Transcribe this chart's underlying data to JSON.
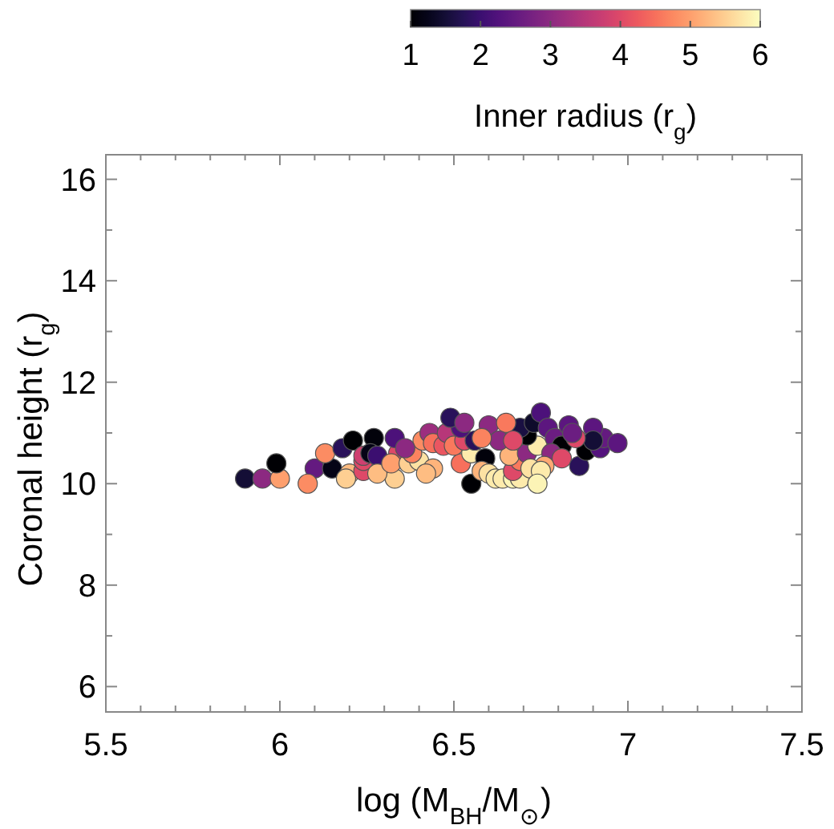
{
  "chart_data": {
    "type": "scatter",
    "xlabel": "log (M$_{BH}$/M$_{⊙}$)",
    "ylabel": "Coronal height (r$_{g}$)",
    "clabel": "Inner radius (r$_{g}$)",
    "xlim": [
      5.5,
      7.5
    ],
    "ylim": [
      5.5,
      16.5
    ],
    "xticks": [
      5.5,
      {
        "value": 5.6,
        "label": null
      },
      {
        "value": 5.7,
        "label": null
      },
      {
        "value": 5.8,
        "label": null
      },
      {
        "value": 5.9,
        "label": null
      },
      6,
      {
        "value": 6.1,
        "label": null
      },
      {
        "value": 6.2,
        "label": null
      },
      {
        "value": 6.3,
        "label": null
      },
      {
        "value": 6.4,
        "label": null
      },
      6.5,
      {
        "value": 6.6,
        "label": null
      },
      {
        "value": 6.7,
        "label": null
      },
      {
        "value": 6.8,
        "label": null
      },
      {
        "value": 6.9,
        "label": null
      },
      7,
      {
        "value": 7.1,
        "label": null
      },
      {
        "value": 7.2,
        "label": null
      },
      {
        "value": 7.3,
        "label": null
      },
      {
        "value": 7.4,
        "label": null
      },
      7.5
    ],
    "yticks": [
      6,
      {
        "value": 7,
        "label": null
      },
      8,
      {
        "value": 9,
        "label": null
      },
      10,
      {
        "value": 11,
        "label": null
      },
      12,
      {
        "value": 13,
        "label": null
      },
      14,
      {
        "value": 15,
        "label": null
      },
      16
    ],
    "clim": [
      1,
      6
    ],
    "cticks": [
      1,
      2,
      3,
      4,
      5,
      6
    ],
    "marker": "circle",
    "grid": false,
    "x": [
      5.9,
      5.95,
      6.0,
      5.99,
      6.1,
      6.15,
      6.08,
      6.13,
      6.18,
      6.21,
      6.27,
      6.2,
      6.19,
      6.24,
      6.24,
      6.24,
      6.26,
      6.28,
      6.33,
      6.28,
      6.34,
      6.32,
      6.37,
      6.4,
      6.38,
      6.33,
      6.41,
      6.36,
      6.43,
      6.44,
      6.47,
      6.48,
      6.44,
      6.42,
      6.52,
      6.5,
      6.55,
      6.53,
      6.56,
      6.52,
      6.49,
      6.53,
      6.55,
      6.59,
      6.58,
      6.6,
      6.62,
      6.64,
      6.67,
      6.69,
      6.67,
      6.69,
      6.66,
      6.71,
      6.74,
      6.71,
      6.69,
      6.6,
      6.65,
      6.63,
      6.58,
      6.67,
      6.73,
      6.75,
      6.77,
      6.79,
      6.81,
      6.78,
      6.81,
      6.76,
      6.72,
      6.75,
      6.74,
      6.86,
      6.88,
      6.92,
      6.93,
      6.9,
      6.9,
      6.85,
      6.83,
      6.97,
      6.84
    ],
    "values": [
      10.1,
      10.1,
      10.1,
      10.4,
      10.3,
      10.3,
      10.0,
      10.6,
      10.7,
      10.85,
      10.9,
      10.2,
      10.1,
      10.25,
      10.45,
      10.55,
      10.6,
      10.55,
      10.1,
      10.2,
      10.6,
      10.4,
      10.4,
      10.45,
      10.6,
      10.9,
      10.85,
      10.7,
      11.0,
      10.8,
      10.75,
      11.0,
      10.3,
      10.2,
      10.4,
      10.75,
      10.6,
      10.85,
      10.85,
      11.1,
      11.3,
      11.2,
      10.0,
      10.5,
      10.25,
      10.2,
      10.1,
      10.1,
      10.1,
      10.1,
      10.25,
      10.45,
      10.55,
      10.6,
      10.75,
      10.95,
      11.1,
      11.15,
      11.2,
      10.85,
      10.9,
      10.85,
      11.2,
      11.4,
      11.1,
      10.9,
      10.75,
      10.6,
      10.5,
      10.35,
      10.3,
      10.25,
      10.0,
      10.35,
      10.65,
      10.7,
      10.9,
      11.1,
      10.85,
      10.9,
      11.15,
      10.8,
      11.0
    ],
    "cvalues": [
      1.5,
      3,
      5,
      1,
      2.5,
      1.2,
      4.8,
      4.8,
      1.8,
      1,
      1.1,
      5.3,
      5.5,
      4,
      4,
      3.8,
      1.2,
      2,
      5.5,
      5.3,
      4,
      5,
      5.5,
      5.7,
      4.7,
      2.2,
      4.8,
      3,
      3.2,
      4.5,
      4.2,
      3.5,
      5.2,
      5.3,
      4.5,
      4.6,
      5.8,
      4,
      1.8,
      2.2,
      1.8,
      3,
      1,
      1.1,
      5.2,
      5.7,
      5.8,
      5.8,
      5.9,
      5.8,
      4,
      4.6,
      5.2,
      3,
      5.8,
      1,
      1.6,
      3,
      4.6,
      3,
      4.7,
      4,
      1.4,
      2.2,
      2.4,
      2.6,
      1,
      3,
      4,
      5.1,
      5.7,
      5.8,
      5.9,
      1.8,
      1,
      2.3,
      2.5,
      2.4,
      1.5,
      4,
      2.4,
      2.4,
      2.6
    ]
  }
}
